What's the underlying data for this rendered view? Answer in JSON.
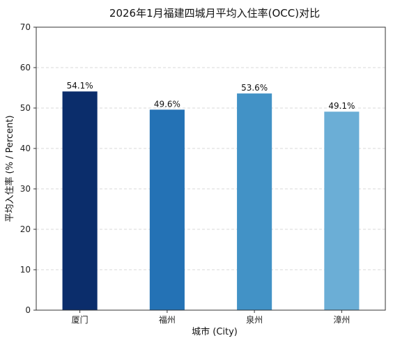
{
  "chart_data": {
    "type": "bar",
    "title": "2026年1月福建四城月平均入住率(OCC)对比",
    "xlabel": "城市 (City)",
    "ylabel": "平均入住率 (% / Percent)",
    "categories": [
      "厦门",
      "福州",
      "泉州",
      "漳州"
    ],
    "values": [
      54.1,
      49.6,
      53.6,
      49.1
    ],
    "value_labels": [
      "54.1%",
      "49.6%",
      "53.6%",
      "49.1%"
    ],
    "colors": [
      "#0b2d6b",
      "#2472b5",
      "#4292c6",
      "#6baed6"
    ],
    "ylim": [
      0,
      70
    ],
    "yticks": [
      0,
      10,
      20,
      30,
      40,
      50,
      60,
      70
    ],
    "ytick_labels": [
      "0",
      "10",
      "20",
      "30",
      "40",
      "50",
      "60",
      "70"
    ],
    "grid": "y-dashed"
  }
}
